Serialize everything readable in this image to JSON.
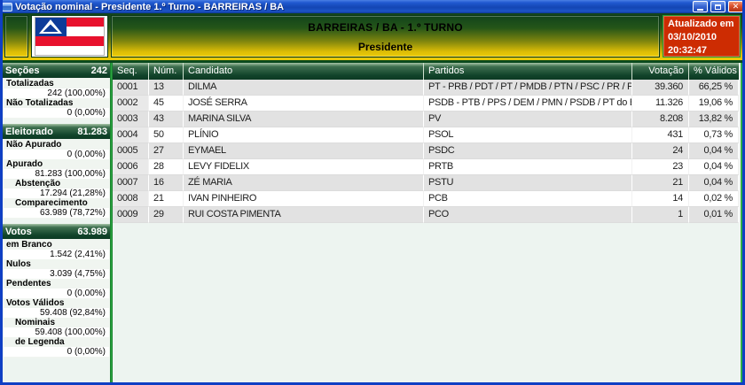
{
  "window": {
    "title": "Votação nominal - Presidente 1.º Turno - BARREIRAS / BA"
  },
  "header": {
    "title_line1": "BARREIRAS / BA - 1.º TURNO",
    "title_line2": "Presidente",
    "updated": {
      "label": "Atualizado em",
      "date": "03/10/2010",
      "time": "20:32:47"
    }
  },
  "sidebar": {
    "panels": [
      {
        "title": "Seções",
        "total": "242",
        "rows": [
          {
            "label": "Totalizadas",
            "value": "242 (100,00%)",
            "indent": 0
          },
          {
            "label": "Não Totalizadas",
            "value": "0 (0,00%)",
            "indent": 0
          }
        ]
      },
      {
        "title": "Eleitorado",
        "total": "81.283",
        "rows": [
          {
            "label": "Não Apurado",
            "value": "0 (0,00%)",
            "indent": 0
          },
          {
            "label": "Apurado",
            "value": "81.283 (100,00%)",
            "indent": 0
          },
          {
            "label": "Abstenção",
            "value": "17.294 (21,28%)",
            "indent": 1
          },
          {
            "label": "Comparecimento",
            "value": "63.989 (78,72%)",
            "indent": 1
          }
        ]
      },
      {
        "title": "Votos",
        "total": "63.989",
        "rows": [
          {
            "label": "em Branco",
            "value": "1.542 (2,41%)",
            "indent": 0
          },
          {
            "label": "Nulos",
            "value": "3.039 (4,75%)",
            "indent": 0
          },
          {
            "label": "Pendentes",
            "value": "0 (0,00%)",
            "indent": 0
          },
          {
            "label": "Votos Válidos",
            "value": "59.408 (92,84%)",
            "indent": 0
          },
          {
            "label": "Nominais",
            "value": "59.408 (100,00%)",
            "indent": 1
          },
          {
            "label": "de Legenda",
            "value": "0 (0,00%)",
            "indent": 1
          }
        ]
      }
    ]
  },
  "table": {
    "columns": [
      "Seq.",
      "Núm.",
      "Candidato",
      "Partidos",
      "Votação",
      "% Válidos"
    ],
    "rows": [
      [
        "0001",
        "13",
        "DILMA",
        "PT - PRB / PDT / PT / PMDB / PTN / PSC / PR / PTC / P...",
        "39.360",
        "66,25 %"
      ],
      [
        "0002",
        "45",
        "JOSÉ SERRA",
        "PSDB - PTB / PPS / DEM / PMN / PSDB / PT do B",
        "11.326",
        "19,06 %"
      ],
      [
        "0003",
        "43",
        "MARINA SILVA",
        "PV",
        "8.208",
        "13,82 %"
      ],
      [
        "0004",
        "50",
        "PLÍNIO",
        "PSOL",
        "431",
        "0,73 %"
      ],
      [
        "0005",
        "27",
        "EYMAEL",
        "PSDC",
        "24",
        "0,04 %"
      ],
      [
        "0006",
        "28",
        "LEVY FIDELIX",
        "PRTB",
        "23",
        "0,04 %"
      ],
      [
        "0007",
        "16",
        "ZÉ MARIA",
        "PSTU",
        "21",
        "0,04 %"
      ],
      [
        "0008",
        "21",
        "IVAN PINHEIRO",
        "PCB",
        "14",
        "0,02 %"
      ],
      [
        "0009",
        "29",
        "RUI COSTA PIMENTA",
        "PCO",
        "1",
        "0,01 %"
      ]
    ]
  },
  "colors": {
    "titlebar_blue": "#1446b4",
    "banner_green": "#12431c",
    "banner_yellow": "#eccb08",
    "header_bar_green": "#11432a",
    "updated_red": "#cd2c02",
    "updated_border_green": "#23a035",
    "divider_green": "#32b24a",
    "row_shade": "#e2e2e2"
  },
  "flag": {
    "name": "bahia-state-flag",
    "red": "#e8112d",
    "blue": "#0d3b99",
    "white": "#ffffff"
  }
}
